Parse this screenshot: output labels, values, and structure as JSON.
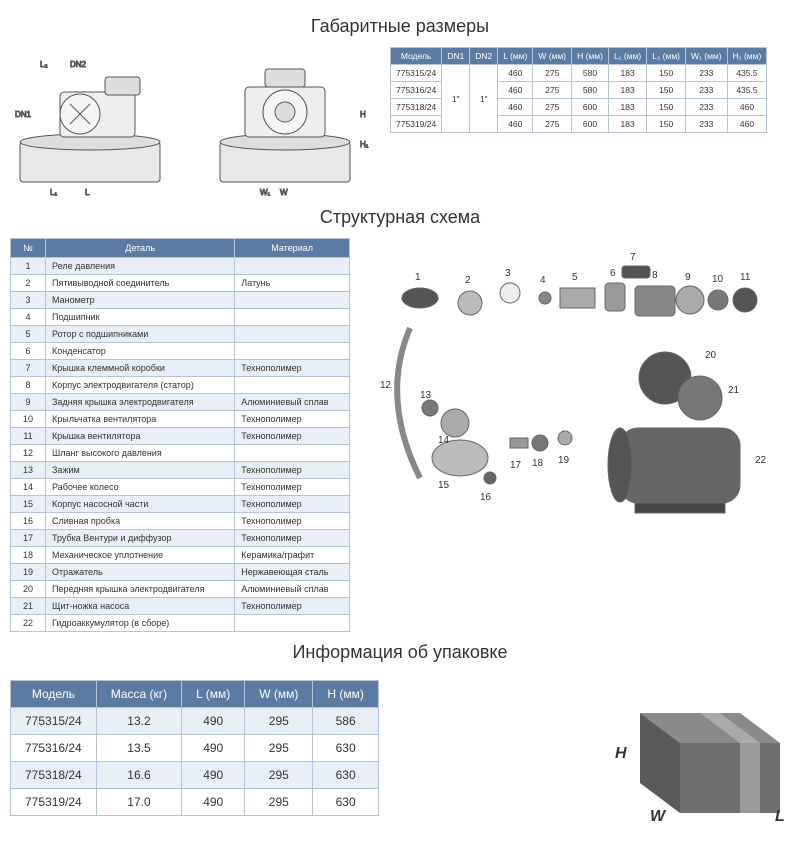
{
  "colors": {
    "header_bg": "#5b7ba3",
    "header_text": "#ffffff",
    "border": "#b5c4d8",
    "row_alt": "#e8eef5",
    "row_bg": "#ffffff",
    "text": "#333333",
    "box_top": "#8a8a8a",
    "box_front": "#5a5a5a",
    "box_side": "#6f6f6f"
  },
  "typography": {
    "title_fontsize": 18,
    "table_fontsize_small": 8.5,
    "table_fontsize_struct": 9,
    "table_fontsize_pack": 12
  },
  "sections": {
    "dims_title": "Габаритные размеры",
    "struct_title": "Структурная схема",
    "pack_title": "Информация об упаковке"
  },
  "dims_table": {
    "headers": [
      "Модель",
      "DN1",
      "DN2",
      "L (мм)",
      "W (мм)",
      "H (мм)",
      "L₁ (мм)",
      "L₂ (мм)",
      "W₁ (мм)",
      "H₁ (мм)"
    ],
    "rows": [
      [
        "775315/24",
        "1\"",
        "1\"",
        "460",
        "275",
        "580",
        "183",
        "150",
        "233",
        "435.5"
      ],
      [
        "775316/24",
        "1\"",
        "1\"",
        "460",
        "275",
        "580",
        "183",
        "150",
        "233",
        "435.5"
      ],
      [
        "775318/24",
        "1\"",
        "1\"",
        "460",
        "275",
        "600",
        "183",
        "150",
        "233",
        "460"
      ],
      [
        "775319/24",
        "1\"",
        "1\"",
        "460",
        "275",
        "600",
        "183",
        "150",
        "233",
        "460"
      ]
    ],
    "merge_cols": [
      1,
      2
    ]
  },
  "struct_table": {
    "headers": [
      "№",
      "Деталь",
      "Материал"
    ],
    "rows": [
      [
        "1",
        "Реле давления",
        ""
      ],
      [
        "2",
        "Пятивыводной соединитель",
        "Латунь"
      ],
      [
        "3",
        "Манометр",
        ""
      ],
      [
        "4",
        "Подшипник",
        ""
      ],
      [
        "5",
        "Ротор с подшипниками",
        ""
      ],
      [
        "6",
        "Конденсатор",
        ""
      ],
      [
        "7",
        "Крышка клеммной коробки",
        "Технополимер"
      ],
      [
        "8",
        "Корпус электродвигателя (статор)",
        ""
      ],
      [
        "9",
        "Задняя крышка электродвигателя",
        "Алюминиевый сплав"
      ],
      [
        "10",
        "Крыльчатка вентилятора",
        "Технополимер"
      ],
      [
        "11",
        "Крышка вентилятора",
        "Технополимер"
      ],
      [
        "12",
        "Шланг высокого давления",
        ""
      ],
      [
        "13",
        "Зажим",
        "Технополимер"
      ],
      [
        "14",
        "Рабочее колесо",
        "Технополимер"
      ],
      [
        "15",
        "Корпус насосной части",
        "Технополимер"
      ],
      [
        "16",
        "Сливная пробка",
        "Технополимер"
      ],
      [
        "17",
        "Трубка Вентури и диффузор",
        "Технополимер"
      ],
      [
        "18",
        "Механическое уплотнение",
        "Керамика/графит"
      ],
      [
        "19",
        "Отражатель",
        "Нержавеющая сталь"
      ],
      [
        "20",
        "Передняя крышка электродвигателя",
        "Алюминиевый сплав"
      ],
      [
        "21",
        "Щит-ножка насоса",
        "Технополимер"
      ],
      [
        "22",
        "Гидроаккумулятор (в сборе)",
        ""
      ]
    ]
  },
  "pack_table": {
    "headers": [
      "Модель",
      "Масса (кг)",
      "L (мм)",
      "W (мм)",
      "H (мм)"
    ],
    "rows": [
      [
        "775315/24",
        "13.2",
        "490",
        "295",
        "586"
      ],
      [
        "775316/24",
        "13.5",
        "490",
        "295",
        "630"
      ],
      [
        "775318/24",
        "16.6",
        "490",
        "295",
        "630"
      ],
      [
        "775319/24",
        "17.0",
        "490",
        "295",
        "630"
      ]
    ]
  },
  "box_labels": {
    "H": "H",
    "W": "W",
    "L": "L"
  },
  "diagrams": {
    "dim_drawing_size": [
      370,
      160
    ],
    "exploded_size": [
      420,
      300
    ],
    "exploded_callouts": [
      "1",
      "2",
      "3",
      "4",
      "5",
      "6",
      "7",
      "8",
      "9",
      "10",
      "11",
      "12",
      "13",
      "14",
      "15",
      "16",
      "17",
      "18",
      "19",
      "20",
      "21",
      "22"
    ]
  }
}
